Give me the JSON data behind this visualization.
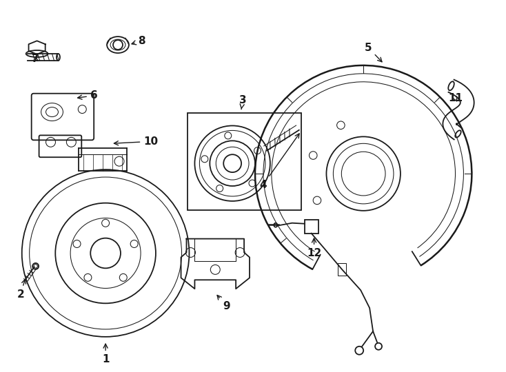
{
  "bg_color": "#ffffff",
  "line_color": "#1a1a1a",
  "fig_width": 7.34,
  "fig_height": 5.4,
  "lw": 1.3,
  "lw_thin": 0.75,
  "lw_thick": 1.8
}
